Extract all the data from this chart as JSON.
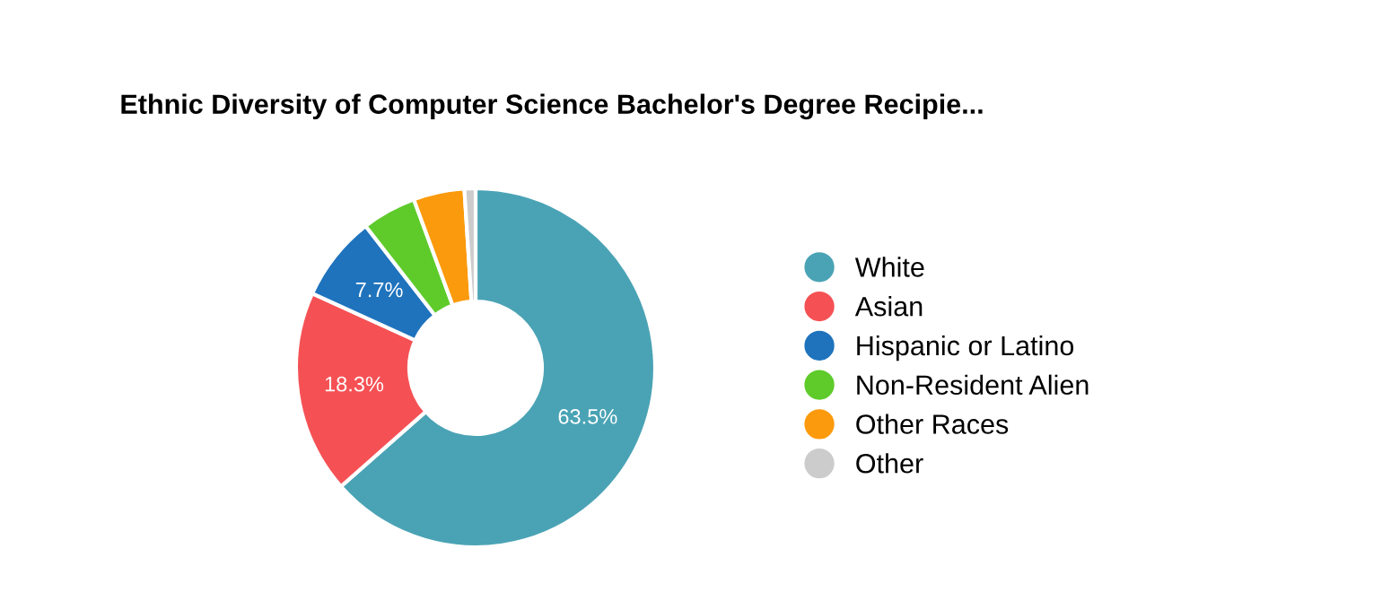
{
  "chart_data": {
    "type": "donut",
    "title": "Ethnic Diversity of Computer Science Bachelor's Degree Recipie...",
    "categories": [
      "White",
      "Asian",
      "Hispanic or Latino",
      "Non-Resident Alien",
      "Other Races",
      "Other"
    ],
    "values": [
      63.5,
      18.3,
      7.7,
      4.9,
      4.6,
      1.0
    ],
    "value_labels": [
      "63.5%",
      "18.3%",
      "7.7%",
      null,
      null,
      null
    ],
    "colors": [
      "#4aa3b5",
      "#f55155",
      "#1f73bd",
      "#5ecb2b",
      "#fb9a0c",
      "#cccccc"
    ],
    "legend": "right"
  }
}
